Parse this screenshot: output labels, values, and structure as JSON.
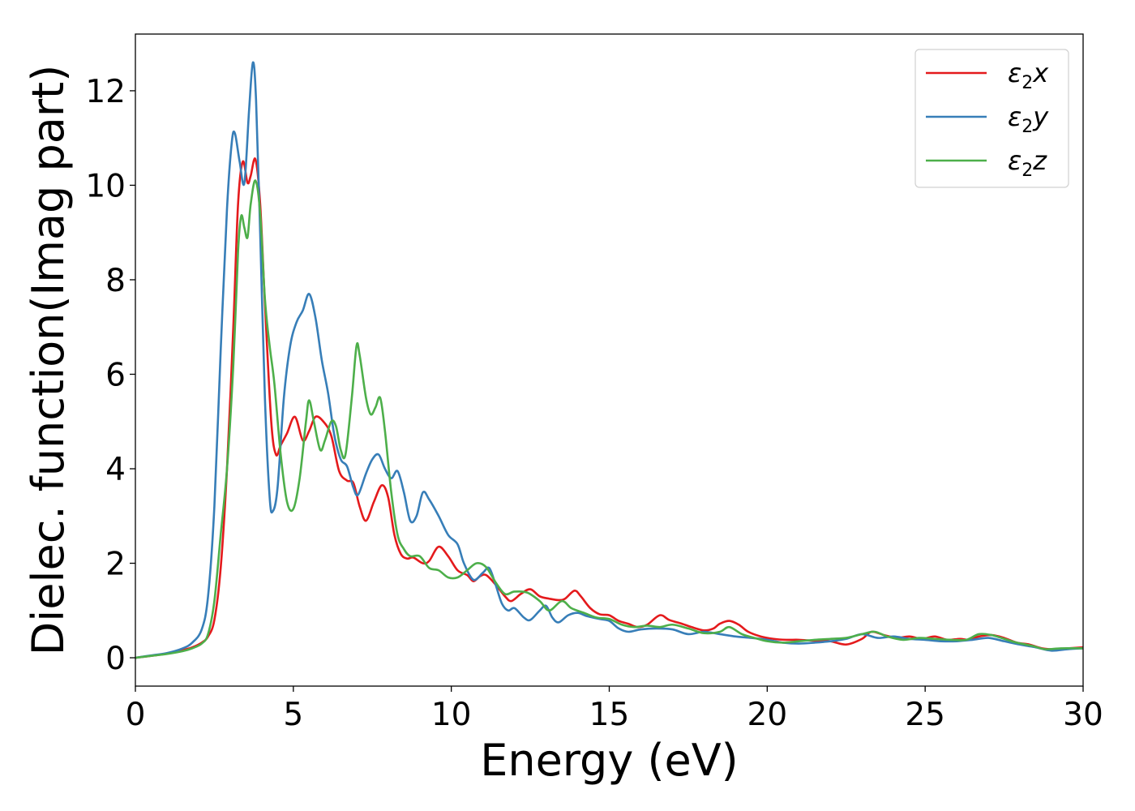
{
  "chart_data": {
    "type": "line",
    "title": "",
    "xlabel": "Energy (eV)",
    "ylabel": "Dielec. function(Imag part)",
    "xlim": [
      0,
      30
    ],
    "ylim": [
      -0.6,
      13.2
    ],
    "xticks": [
      0,
      5,
      10,
      15,
      20,
      25,
      30
    ],
    "yticks": [
      0,
      2,
      4,
      6,
      8,
      10,
      12
    ],
    "grid": false,
    "legend_position": "top-right",
    "series": [
      {
        "name": "ε₂x",
        "legend_main": "ε",
        "legend_sub": "2",
        "legend_axis": "x",
        "color": "#e41a1c",
        "points": [
          [
            0,
            0
          ],
          [
            0.5,
            0.04
          ],
          [
            1.0,
            0.09
          ],
          [
            1.5,
            0.16
          ],
          [
            1.8,
            0.22
          ],
          [
            2.1,
            0.32
          ],
          [
            2.3,
            0.45
          ],
          [
            2.5,
            0.8
          ],
          [
            2.7,
            1.9
          ],
          [
            2.9,
            4.0
          ],
          [
            3.1,
            7.0
          ],
          [
            3.25,
            9.6
          ],
          [
            3.4,
            10.5
          ],
          [
            3.55,
            10.05
          ],
          [
            3.65,
            10.2
          ],
          [
            3.8,
            10.55
          ],
          [
            3.95,
            9.6
          ],
          [
            4.1,
            7.5
          ],
          [
            4.3,
            5.0
          ],
          [
            4.45,
            4.3
          ],
          [
            4.6,
            4.5
          ],
          [
            4.8,
            4.75
          ],
          [
            5.05,
            5.1
          ],
          [
            5.3,
            4.6
          ],
          [
            5.5,
            4.8
          ],
          [
            5.7,
            5.1
          ],
          [
            5.95,
            5.0
          ],
          [
            6.2,
            4.7
          ],
          [
            6.45,
            3.95
          ],
          [
            6.7,
            3.75
          ],
          [
            6.9,
            3.7
          ],
          [
            7.1,
            3.2
          ],
          [
            7.3,
            2.9
          ],
          [
            7.55,
            3.3
          ],
          [
            7.8,
            3.65
          ],
          [
            8.0,
            3.4
          ],
          [
            8.2,
            2.6
          ],
          [
            8.4,
            2.2
          ],
          [
            8.6,
            2.1
          ],
          [
            8.8,
            2.12
          ],
          [
            9.1,
            2.0
          ],
          [
            9.3,
            2.05
          ],
          [
            9.6,
            2.35
          ],
          [
            9.9,
            2.15
          ],
          [
            10.2,
            1.85
          ],
          [
            10.5,
            1.75
          ],
          [
            10.7,
            1.62
          ],
          [
            10.9,
            1.72
          ],
          [
            11.1,
            1.75
          ],
          [
            11.4,
            1.55
          ],
          [
            11.7,
            1.3
          ],
          [
            11.9,
            1.2
          ],
          [
            12.2,
            1.35
          ],
          [
            12.5,
            1.45
          ],
          [
            12.8,
            1.3
          ],
          [
            13.1,
            1.25
          ],
          [
            13.4,
            1.22
          ],
          [
            13.6,
            1.25
          ],
          [
            13.9,
            1.42
          ],
          [
            14.1,
            1.3
          ],
          [
            14.4,
            1.05
          ],
          [
            14.7,
            0.92
          ],
          [
            15.0,
            0.9
          ],
          [
            15.3,
            0.78
          ],
          [
            15.6,
            0.72
          ],
          [
            15.9,
            0.65
          ],
          [
            16.2,
            0.7
          ],
          [
            16.6,
            0.9
          ],
          [
            16.9,
            0.8
          ],
          [
            17.3,
            0.72
          ],
          [
            17.6,
            0.65
          ],
          [
            18.0,
            0.58
          ],
          [
            18.3,
            0.62
          ],
          [
            18.5,
            0.72
          ],
          [
            18.8,
            0.78
          ],
          [
            19.1,
            0.7
          ],
          [
            19.4,
            0.55
          ],
          [
            19.8,
            0.45
          ],
          [
            20.2,
            0.4
          ],
          [
            20.6,
            0.38
          ],
          [
            21.0,
            0.38
          ],
          [
            21.5,
            0.36
          ],
          [
            22.0,
            0.35
          ],
          [
            22.5,
            0.28
          ],
          [
            23.0,
            0.4
          ],
          [
            23.3,
            0.55
          ],
          [
            23.7,
            0.48
          ],
          [
            24.1,
            0.42
          ],
          [
            24.5,
            0.45
          ],
          [
            24.9,
            0.4
          ],
          [
            25.3,
            0.45
          ],
          [
            25.7,
            0.38
          ],
          [
            26.1,
            0.4
          ],
          [
            26.4,
            0.38
          ],
          [
            26.7,
            0.45
          ],
          [
            27.1,
            0.48
          ],
          [
            27.5,
            0.42
          ],
          [
            27.9,
            0.32
          ],
          [
            28.3,
            0.28
          ],
          [
            28.7,
            0.2
          ],
          [
            29.1,
            0.18
          ],
          [
            29.5,
            0.2
          ],
          [
            30.0,
            0.22
          ]
        ]
      },
      {
        "name": "ε₂y",
        "legend_main": "ε",
        "legend_sub": "2",
        "legend_axis": "y",
        "color": "#377eb8",
        "points": [
          [
            0,
            0
          ],
          [
            0.5,
            0.05
          ],
          [
            1.0,
            0.1
          ],
          [
            1.5,
            0.2
          ],
          [
            1.8,
            0.32
          ],
          [
            2.1,
            0.6
          ],
          [
            2.3,
            1.3
          ],
          [
            2.5,
            3.2
          ],
          [
            2.7,
            6.5
          ],
          [
            2.9,
            9.5
          ],
          [
            3.05,
            10.9
          ],
          [
            3.15,
            11.1
          ],
          [
            3.3,
            10.5
          ],
          [
            3.45,
            10.05
          ],
          [
            3.6,
            11.6
          ],
          [
            3.72,
            12.6
          ],
          [
            3.82,
            11.8
          ],
          [
            3.95,
            9.0
          ],
          [
            4.1,
            5.5
          ],
          [
            4.25,
            3.4
          ],
          [
            4.35,
            3.1
          ],
          [
            4.5,
            3.6
          ],
          [
            4.7,
            5.5
          ],
          [
            4.9,
            6.6
          ],
          [
            5.1,
            7.1
          ],
          [
            5.3,
            7.35
          ],
          [
            5.5,
            7.7
          ],
          [
            5.7,
            7.2
          ],
          [
            5.9,
            6.3
          ],
          [
            6.1,
            5.6
          ],
          [
            6.3,
            4.7
          ],
          [
            6.5,
            4.2
          ],
          [
            6.7,
            4.05
          ],
          [
            6.9,
            3.6
          ],
          [
            7.05,
            3.45
          ],
          [
            7.3,
            3.9
          ],
          [
            7.5,
            4.2
          ],
          [
            7.7,
            4.3
          ],
          [
            7.9,
            4.0
          ],
          [
            8.1,
            3.8
          ],
          [
            8.3,
            3.95
          ],
          [
            8.5,
            3.5
          ],
          [
            8.7,
            2.9
          ],
          [
            8.9,
            3.0
          ],
          [
            9.1,
            3.5
          ],
          [
            9.3,
            3.35
          ],
          [
            9.6,
            3.0
          ],
          [
            9.9,
            2.6
          ],
          [
            10.2,
            2.4
          ],
          [
            10.4,
            2.0
          ],
          [
            10.7,
            1.65
          ],
          [
            11.0,
            1.8
          ],
          [
            11.2,
            1.9
          ],
          [
            11.4,
            1.55
          ],
          [
            11.6,
            1.15
          ],
          [
            11.8,
            1.0
          ],
          [
            12.0,
            1.05
          ],
          [
            12.3,
            0.85
          ],
          [
            12.5,
            0.8
          ],
          [
            12.8,
            1.0
          ],
          [
            13.0,
            1.1
          ],
          [
            13.2,
            0.85
          ],
          [
            13.4,
            0.75
          ],
          [
            13.7,
            0.9
          ],
          [
            14.0,
            0.95
          ],
          [
            14.3,
            0.88
          ],
          [
            14.7,
            0.82
          ],
          [
            15.0,
            0.78
          ],
          [
            15.3,
            0.62
          ],
          [
            15.6,
            0.55
          ],
          [
            16.0,
            0.6
          ],
          [
            16.5,
            0.62
          ],
          [
            17.0,
            0.6
          ],
          [
            17.5,
            0.5
          ],
          [
            18.0,
            0.55
          ],
          [
            18.5,
            0.5
          ],
          [
            19.0,
            0.45
          ],
          [
            19.5,
            0.42
          ],
          [
            20.0,
            0.38
          ],
          [
            20.5,
            0.32
          ],
          [
            21.0,
            0.3
          ],
          [
            21.5,
            0.32
          ],
          [
            22.0,
            0.35
          ],
          [
            22.5,
            0.4
          ],
          [
            23.0,
            0.5
          ],
          [
            23.5,
            0.42
          ],
          [
            24.0,
            0.45
          ],
          [
            24.5,
            0.4
          ],
          [
            25.0,
            0.38
          ],
          [
            25.5,
            0.35
          ],
          [
            26.0,
            0.35
          ],
          [
            26.5,
            0.38
          ],
          [
            27.0,
            0.42
          ],
          [
            27.5,
            0.35
          ],
          [
            28.0,
            0.28
          ],
          [
            28.5,
            0.22
          ],
          [
            29.0,
            0.15
          ],
          [
            29.5,
            0.18
          ],
          [
            30.0,
            0.2
          ]
        ]
      },
      {
        "name": "ε₂z",
        "legend_main": "ε",
        "legend_sub": "2",
        "legend_axis": "z",
        "color": "#4daf4a",
        "points": [
          [
            0,
            0
          ],
          [
            0.5,
            0.04
          ],
          [
            1.0,
            0.08
          ],
          [
            1.5,
            0.14
          ],
          [
            1.8,
            0.2
          ],
          [
            2.1,
            0.3
          ],
          [
            2.3,
            0.5
          ],
          [
            2.5,
            1.2
          ],
          [
            2.7,
            2.6
          ],
          [
            2.9,
            4.0
          ],
          [
            3.1,
            6.2
          ],
          [
            3.25,
            8.6
          ],
          [
            3.35,
            9.35
          ],
          [
            3.45,
            9.1
          ],
          [
            3.55,
            8.9
          ],
          [
            3.65,
            9.6
          ],
          [
            3.8,
            10.1
          ],
          [
            3.95,
            9.4
          ],
          [
            4.1,
            7.6
          ],
          [
            4.25,
            6.6
          ],
          [
            4.4,
            5.8
          ],
          [
            4.6,
            4.3
          ],
          [
            4.8,
            3.3
          ],
          [
            5.0,
            3.15
          ],
          [
            5.2,
            3.8
          ],
          [
            5.4,
            5.0
          ],
          [
            5.5,
            5.45
          ],
          [
            5.65,
            5.0
          ],
          [
            5.85,
            4.4
          ],
          [
            6.0,
            4.6
          ],
          [
            6.2,
            5.0
          ],
          [
            6.35,
            4.9
          ],
          [
            6.5,
            4.4
          ],
          [
            6.65,
            4.3
          ],
          [
            6.85,
            5.5
          ],
          [
            7.0,
            6.6
          ],
          [
            7.1,
            6.4
          ],
          [
            7.3,
            5.5
          ],
          [
            7.45,
            5.15
          ],
          [
            7.6,
            5.3
          ],
          [
            7.75,
            5.5
          ],
          [
            7.9,
            4.8
          ],
          [
            8.1,
            3.5
          ],
          [
            8.3,
            2.6
          ],
          [
            8.5,
            2.3
          ],
          [
            8.7,
            2.15
          ],
          [
            9.0,
            2.15
          ],
          [
            9.3,
            1.9
          ],
          [
            9.6,
            1.85
          ],
          [
            9.9,
            1.7
          ],
          [
            10.2,
            1.7
          ],
          [
            10.5,
            1.85
          ],
          [
            10.8,
            2.0
          ],
          [
            11.1,
            1.92
          ],
          [
            11.4,
            1.6
          ],
          [
            11.7,
            1.35
          ],
          [
            12.0,
            1.4
          ],
          [
            12.4,
            1.38
          ],
          [
            12.8,
            1.2
          ],
          [
            13.1,
            1.0
          ],
          [
            13.5,
            1.2
          ],
          [
            13.8,
            1.05
          ],
          [
            14.2,
            0.95
          ],
          [
            14.6,
            0.85
          ],
          [
            15.0,
            0.82
          ],
          [
            15.4,
            0.7
          ],
          [
            15.8,
            0.65
          ],
          [
            16.2,
            0.68
          ],
          [
            16.6,
            0.65
          ],
          [
            17.0,
            0.7
          ],
          [
            17.5,
            0.62
          ],
          [
            18.0,
            0.52
          ],
          [
            18.5,
            0.55
          ],
          [
            18.8,
            0.65
          ],
          [
            19.2,
            0.5
          ],
          [
            19.6,
            0.42
          ],
          [
            20.0,
            0.35
          ],
          [
            20.5,
            0.32
          ],
          [
            21.0,
            0.35
          ],
          [
            21.5,
            0.38
          ],
          [
            22.0,
            0.4
          ],
          [
            22.5,
            0.42
          ],
          [
            23.0,
            0.5
          ],
          [
            23.4,
            0.55
          ],
          [
            23.8,
            0.45
          ],
          [
            24.3,
            0.38
          ],
          [
            24.8,
            0.42
          ],
          [
            25.3,
            0.4
          ],
          [
            25.8,
            0.38
          ],
          [
            26.3,
            0.38
          ],
          [
            26.7,
            0.5
          ],
          [
            27.1,
            0.48
          ],
          [
            27.5,
            0.4
          ],
          [
            27.9,
            0.32
          ],
          [
            28.4,
            0.25
          ],
          [
            28.8,
            0.18
          ],
          [
            29.3,
            0.2
          ],
          [
            30.0,
            0.2
          ]
        ]
      }
    ]
  }
}
